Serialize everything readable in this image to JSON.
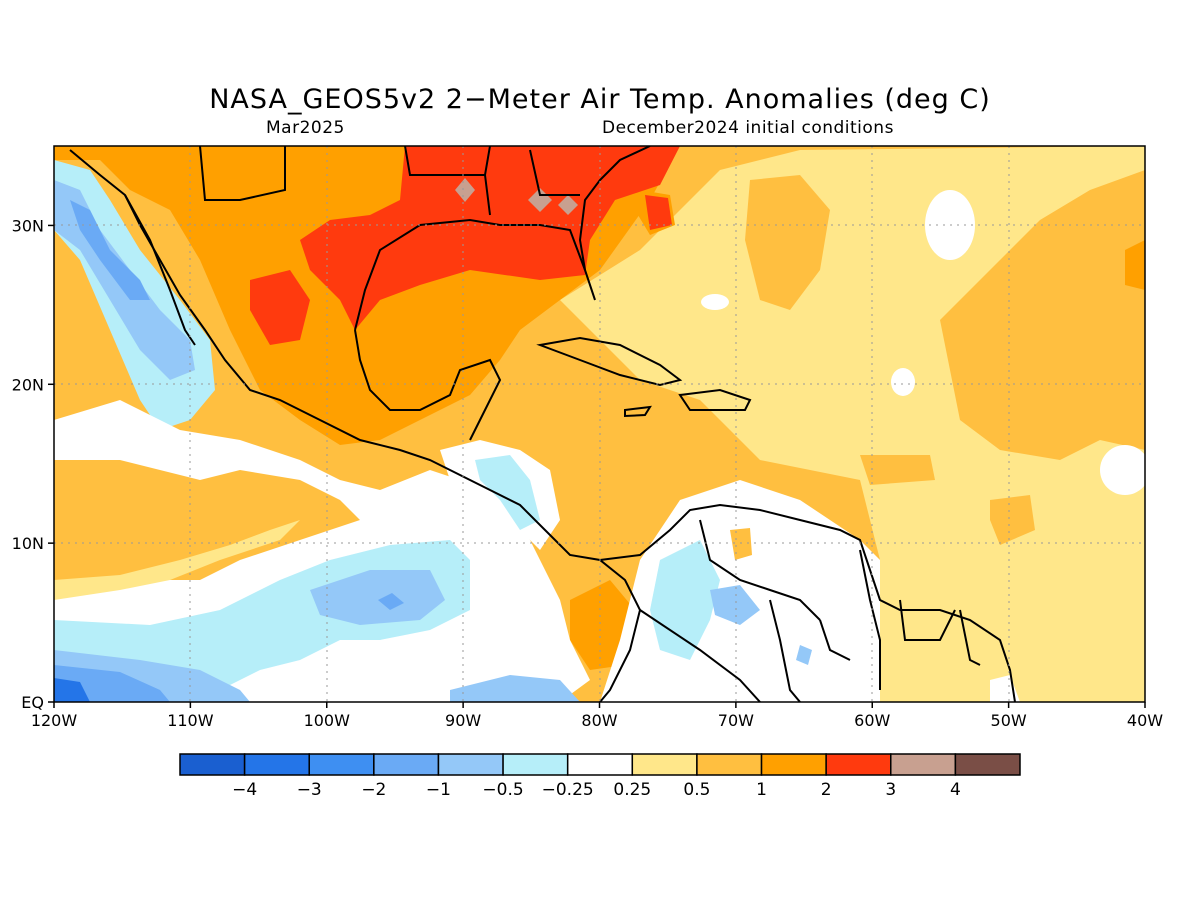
{
  "title": "NASA_GEOS5v2 2−Meter Air Temp. Anomalies (deg C)",
  "subtitle_left": "Mar2025",
  "subtitle_right": "December2024 initial conditions",
  "map": {
    "lon_range": [
      -120,
      -40
    ],
    "lat_range": [
      0,
      35
    ],
    "lon_labels": [
      "120W",
      "110W",
      "100W",
      "90W",
      "80W",
      "70W",
      "60W",
      "50W",
      "40W"
    ],
    "lat_labels": [
      "EQ",
      "10N",
      "20N",
      "30N"
    ]
  },
  "colorbar": {
    "labels": [
      "−4",
      "−3",
      "−2",
      "−1",
      "−0.5",
      "−0.25",
      "0.25",
      "0.5",
      "1",
      "2",
      "3",
      "4"
    ],
    "colors": [
      "#1a5fd0",
      "#2475e8",
      "#3e8ff2",
      "#6aaaf5",
      "#94c8f8",
      "#b6eef9",
      "#ffffff",
      "#ffe78a",
      "#ffbf40",
      "#ffa000",
      "#ff3a0e",
      "#c8a090",
      "#7a4e46"
    ]
  }
}
